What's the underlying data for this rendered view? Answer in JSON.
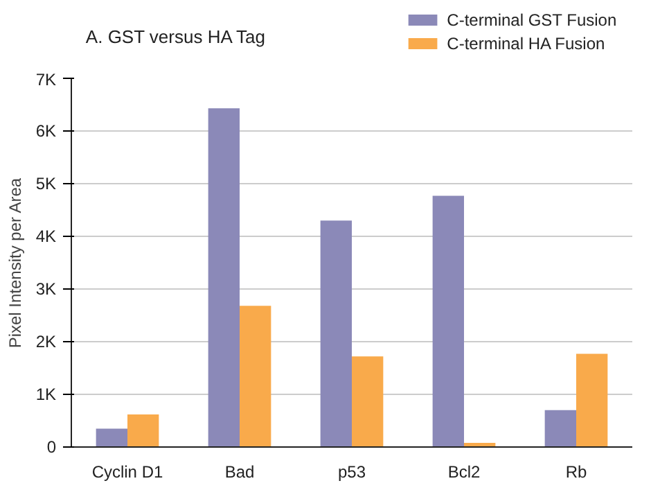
{
  "chart_data": {
    "type": "bar",
    "title": "A. GST versus HA Tag",
    "ylabel": "Pixel Intensity per Area",
    "categories": [
      "Cyclin D1",
      "Bad",
      "p53",
      "Bcl2",
      "Rb"
    ],
    "series": [
      {
        "name": "C-terminal GST Fusion",
        "color": "#8b89b8",
        "values": [
          350,
          6430,
          4300,
          4770,
          700
        ]
      },
      {
        "name": "C-terminal HA Fusion",
        "color": "#f9aa4b",
        "values": [
          620,
          2680,
          1720,
          80,
          1770
        ]
      }
    ],
    "ylim": [
      0,
      7000
    ],
    "yticks": [
      {
        "value": 0,
        "label": "0"
      },
      {
        "value": 1000,
        "label": "1K"
      },
      {
        "value": 2000,
        "label": "2K"
      },
      {
        "value": 3000,
        "label": "3K"
      },
      {
        "value": 4000,
        "label": "4K"
      },
      {
        "value": 5000,
        "label": "5K"
      },
      {
        "value": 6000,
        "label": "6K"
      },
      {
        "value": 7000,
        "label": "7K"
      }
    ],
    "grid": "y",
    "legend": "top right"
  }
}
